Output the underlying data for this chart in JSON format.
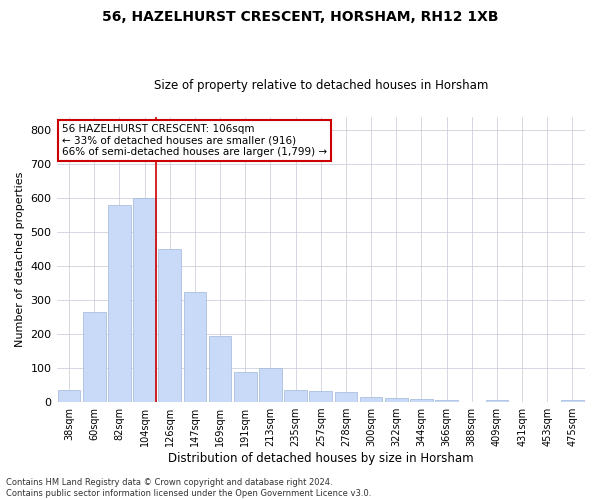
{
  "title1": "56, HAZELHURST CRESCENT, HORSHAM, RH12 1XB",
  "title2": "Size of property relative to detached houses in Horsham",
  "xlabel": "Distribution of detached houses by size in Horsham",
  "ylabel": "Number of detached properties",
  "categories": [
    "38sqm",
    "60sqm",
    "82sqm",
    "104sqm",
    "126sqm",
    "147sqm",
    "169sqm",
    "191sqm",
    "213sqm",
    "235sqm",
    "257sqm",
    "278sqm",
    "300sqm",
    "322sqm",
    "344sqm",
    "366sqm",
    "388sqm",
    "409sqm",
    "431sqm",
    "453sqm",
    "475sqm"
  ],
  "values": [
    35,
    265,
    580,
    600,
    450,
    325,
    195,
    90,
    100,
    35,
    32,
    30,
    15,
    12,
    10,
    5,
    0,
    5,
    0,
    0,
    5
  ],
  "bar_color": "#c9daf8",
  "bar_edge_color": "#a0b8d8",
  "property_line_color": "#cc0000",
  "annotation_text": "56 HAZELHURST CRESCENT: 106sqm\n← 33% of detached houses are smaller (916)\n66% of semi-detached houses are larger (1,799) →",
  "annotation_box_color": "#ffffff",
  "annotation_box_edge": "#cc0000",
  "ylim": [
    0,
    840
  ],
  "yticks": [
    0,
    100,
    200,
    300,
    400,
    500,
    600,
    700,
    800
  ],
  "footnote1": "Contains HM Land Registry data © Crown copyright and database right 2024.",
  "footnote2": "Contains public sector information licensed under the Open Government Licence v3.0.",
  "background_color": "#ffffff",
  "grid_color": "#c8c8d8"
}
